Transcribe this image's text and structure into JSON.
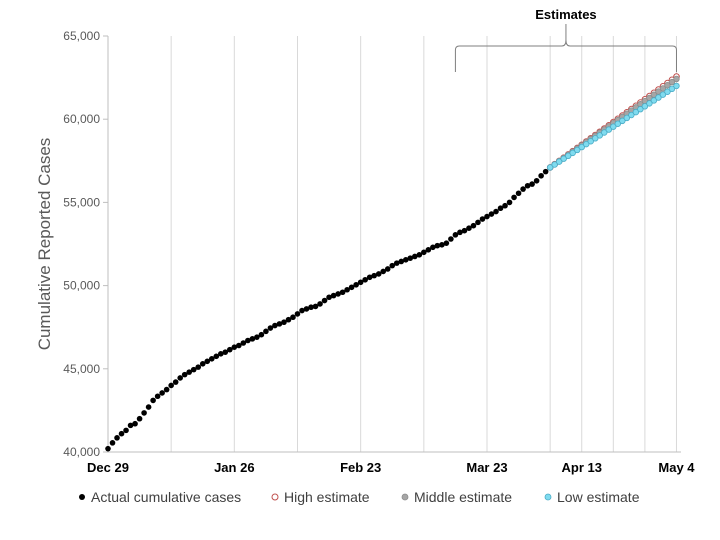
{
  "chart_data": {
    "type": "scatter",
    "title": "",
    "xlabel": "",
    "ylabel": "Cumulative Reported Cases",
    "ylim": [
      40000,
      65000
    ],
    "yticks": [
      40000,
      45000,
      50000,
      55000,
      60000,
      65000
    ],
    "ytick_labels": [
      "40,000",
      "45,000",
      "50,000",
      "55,000",
      "60,000",
      "65,000"
    ],
    "x_unit": "day",
    "xlim": [
      0,
      127
    ],
    "xticks": [
      {
        "label": "Dec 29",
        "x": 0
      },
      {
        "label": "Jan 26",
        "x": 28
      },
      {
        "label": "Feb 23",
        "x": 56
      },
      {
        "label": "Mar 23",
        "x": 84
      },
      {
        "label": "Apr 13",
        "x": 105
      },
      {
        "label": "May 4",
        "x": 126
      }
    ],
    "minor_gridlines_x": [
      14,
      42,
      70,
      98,
      112,
      119
    ],
    "grid": {
      "vertical": true,
      "horizontal": false
    },
    "legend_position": "bottom",
    "annotations": [
      {
        "text": "Estimates",
        "type": "brace",
        "x_start": 77,
        "x_end": 126
      }
    ],
    "colors": {
      "actual": "#000000",
      "high": "#c0504d",
      "middle": "#a6a6a6",
      "middle_stroke": "#8c8c8c",
      "low": "#7fdbef",
      "low_stroke": "#4bacc6",
      "grid": "#d9d9d9",
      "axis": "#bfbfbf"
    },
    "series": [
      {
        "name": "Actual cumulative cases",
        "x_start": 0,
        "x_step": 1,
        "y": [
          40200,
          40550,
          40850,
          41100,
          41300,
          41600,
          41700,
          42000,
          42350,
          42700,
          43100,
          43350,
          43550,
          43750,
          44000,
          44200,
          44450,
          44650,
          44800,
          44950,
          45100,
          45300,
          45450,
          45600,
          45750,
          45900,
          46000,
          46150,
          46300,
          46400,
          46550,
          46700,
          46800,
          46900,
          47050,
          47250,
          47450,
          47600,
          47700,
          47800,
          47950,
          48100,
          48300,
          48500,
          48600,
          48700,
          48750,
          48900,
          49100,
          49300,
          49400,
          49500,
          49600,
          49750,
          49900,
          50050,
          50200,
          50350,
          50500,
          50600,
          50700,
          50850,
          51000,
          51200,
          51350,
          51450,
          51550,
          51650,
          51750,
          51850,
          52000,
          52150,
          52300,
          52400,
          52450,
          52550,
          52800,
          53050,
          53200,
          53300,
          53450,
          53600,
          53800,
          54000,
          54150,
          54300,
          54450,
          54650,
          54800,
          55000,
          55300,
          55550,
          55800,
          56000,
          56100,
          56300,
          56600,
          56850
        ]
      },
      {
        "name": "High estimate",
        "x_start": 98,
        "x_step": 1,
        "y": [
          57100,
          57295,
          57490,
          57685,
          57880,
          58075,
          58270,
          58465,
          58660,
          58855,
          59050,
          59245,
          59440,
          59635,
          59830,
          60025,
          60220,
          60415,
          60610,
          60805,
          61000,
          61195,
          61390,
          61585,
          61780,
          61975,
          62170,
          62365,
          62560
        ]
      },
      {
        "name": "Middle estimate",
        "x_start": 98,
        "x_step": 1,
        "y": [
          57100,
          57290,
          57480,
          57670,
          57860,
          58050,
          58240,
          58430,
          58620,
          58810,
          59000,
          59190,
          59380,
          59570,
          59760,
          59950,
          60140,
          60330,
          60520,
          60710,
          60900,
          61090,
          61280,
          61470,
          61660,
          61850,
          62040,
          62230,
          62420
        ]
      },
      {
        "name": "Low estimate",
        "x_start": 98,
        "x_step": 1,
        "y": [
          57100,
          57275,
          57450,
          57625,
          57800,
          57975,
          58150,
          58325,
          58500,
          58675,
          58850,
          59025,
          59200,
          59375,
          59550,
          59725,
          59900,
          60075,
          60250,
          60425,
          60600,
          60775,
          60950,
          61125,
          61300,
          61475,
          61650,
          61825,
          62000
        ]
      }
    ]
  }
}
